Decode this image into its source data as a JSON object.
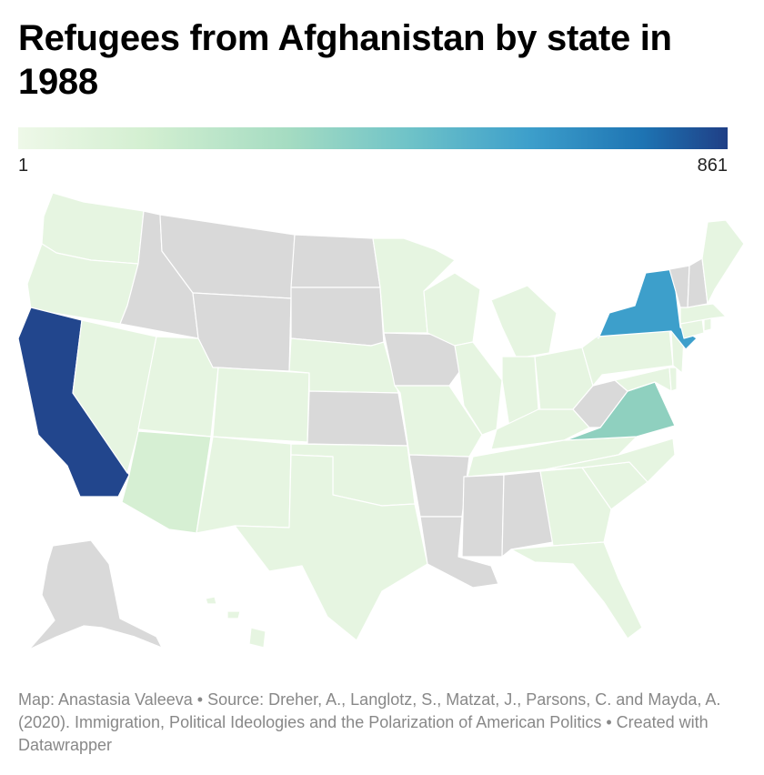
{
  "title": "Refugees from Afghanistan by state in 1988",
  "legend": {
    "min_label": "1",
    "max_label": "861",
    "min": 1,
    "max": 861
  },
  "colors": {
    "scale": [
      "#eef8e8",
      "#d3efd1",
      "#a5dcc2",
      "#6fc3c8",
      "#3d9fcb",
      "#1e74b3",
      "#1f3f86"
    ],
    "no_data": "#d9d9d9"
  },
  "footer": {
    "credit": "Map: Anastasia Valeeva • Source: Dreher, A., Langlotz, S., Matzat, J., Parsons, C. and Mayda, A. (2020). Immigration, Political Ideologies and the Polarization of American Politics • Created with Datawrapper"
  },
  "map_data": {
    "no_data_states": [
      "Montana",
      "Idaho",
      "Wyoming",
      "North Dakota",
      "South Dakota",
      "Kansas",
      "Iowa",
      "Arkansas",
      "Louisiana",
      "Mississippi",
      "Alabama",
      "West Virginia",
      "Vermont",
      "New Hampshire",
      "Alaska"
    ],
    "high_states": [
      {
        "state": "California",
        "level": "max"
      },
      {
        "state": "New York",
        "level": "high"
      },
      {
        "state": "Virginia",
        "level": "medium"
      },
      {
        "state": "Arizona",
        "level": "low"
      }
    ]
  }
}
